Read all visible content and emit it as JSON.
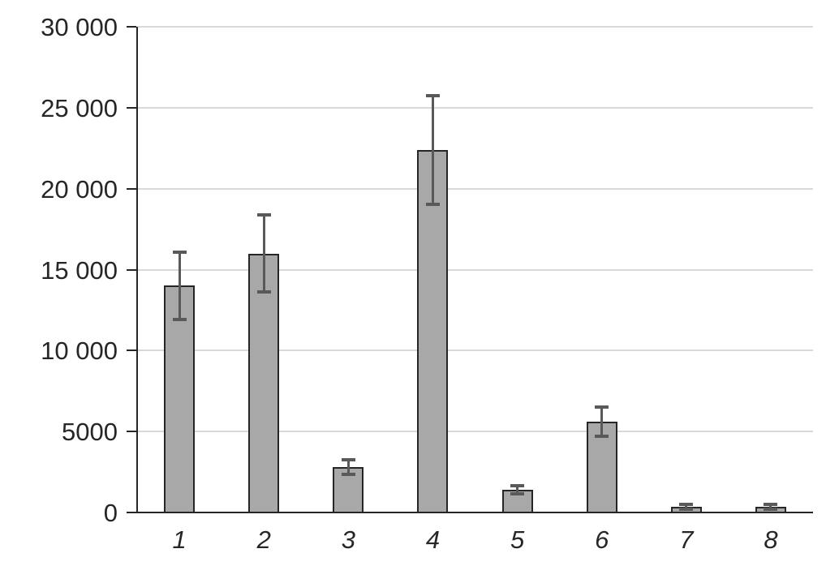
{
  "chart_data": {
    "type": "bar",
    "title": "",
    "xlabel": "",
    "ylabel": "",
    "categories": [
      "1",
      "2",
      "3",
      "4",
      "5",
      "6",
      "7",
      "8"
    ],
    "values": [
      14000,
      16000,
      2800,
      22400,
      1400,
      5600,
      350,
      350
    ],
    "error_bars": [
      2100,
      2400,
      450,
      3350,
      250,
      900,
      150,
      150
    ],
    "ylim": [
      0,
      30000
    ],
    "y_ticks": [
      {
        "value": 30000,
        "label": "30 000"
      },
      {
        "value": 25000,
        "label": "25 000"
      },
      {
        "value": 20000,
        "label": "20 000"
      },
      {
        "value": 15000,
        "label": "15 000"
      },
      {
        "value": 10000,
        "label": "10 000"
      },
      {
        "value": 5000,
        "label": "5000"
      },
      {
        "value": 0,
        "label": "0"
      }
    ],
    "grid": "horizontal-only",
    "legend": "none",
    "colors": {
      "bar_fill": "#a8a8a8",
      "bar_border": "#262626",
      "error_bar": "#595959",
      "gridline": "#d9d9d9",
      "axis": "#262626",
      "label_text": "#262626",
      "background": "#ffffff"
    }
  }
}
